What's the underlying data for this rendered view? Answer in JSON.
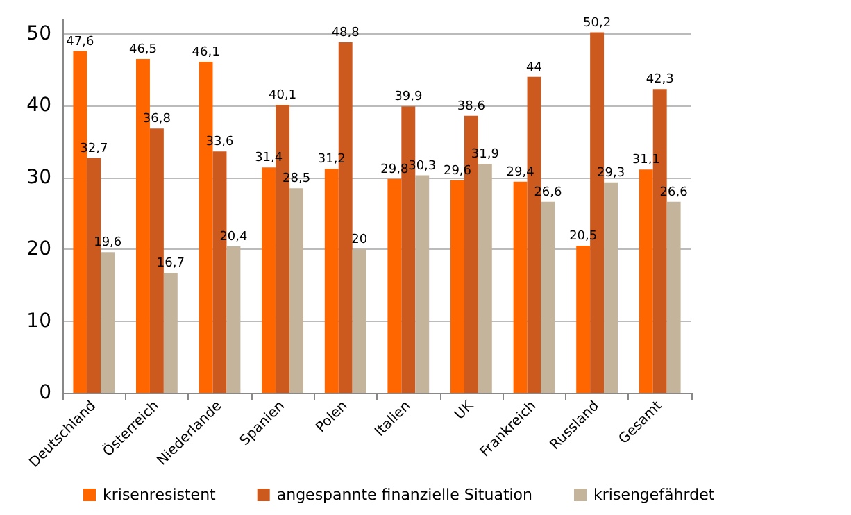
{
  "chart_data": {
    "type": "bar",
    "categories": [
      "Deutschland",
      "Österreich",
      "Niederlande",
      "Spanien",
      "Polen",
      "Italien",
      "UK",
      "Frankreich",
      "Russland",
      "Gesamt"
    ],
    "series": [
      {
        "name": "krisenresistent",
        "color": "#ff6600",
        "values": [
          47.6,
          46.5,
          46.1,
          31.4,
          31.2,
          29.8,
          29.6,
          29.4,
          20.5,
          31.1
        ],
        "value_labels": [
          "47,6",
          "46,5",
          "46,1",
          "31,4",
          "31,2",
          "29,8",
          "29,6",
          "29,4",
          "20,5",
          "31,1"
        ]
      },
      {
        "name": "angespannte finanzielle Situation",
        "color": "#cc5a1e",
        "values": [
          32.7,
          36.8,
          33.6,
          40.1,
          48.8,
          39.9,
          38.6,
          44,
          50.2,
          42.3
        ],
        "value_labels": [
          "32,7",
          "36,8",
          "33,6",
          "40,1",
          "48,8",
          "39,9",
          "38,6",
          "44",
          "50,2",
          "42,3"
        ]
      },
      {
        "name": "krisengefährdet",
        "color": "#c4b49c",
        "values": [
          19.6,
          16.7,
          20.4,
          28.5,
          20,
          30.3,
          31.9,
          26.6,
          29.3,
          26.6
        ],
        "value_labels": [
          "19,6",
          "16,7",
          "20,4",
          "28,5",
          "20",
          "30,3",
          "31,9",
          "26,6",
          "29,3",
          "26,6"
        ]
      }
    ],
    "ylim": [
      0,
      52
    ],
    "yticks": [
      0,
      10,
      20,
      30,
      40,
      50
    ],
    "grid": "y",
    "legend": "bottom"
  }
}
